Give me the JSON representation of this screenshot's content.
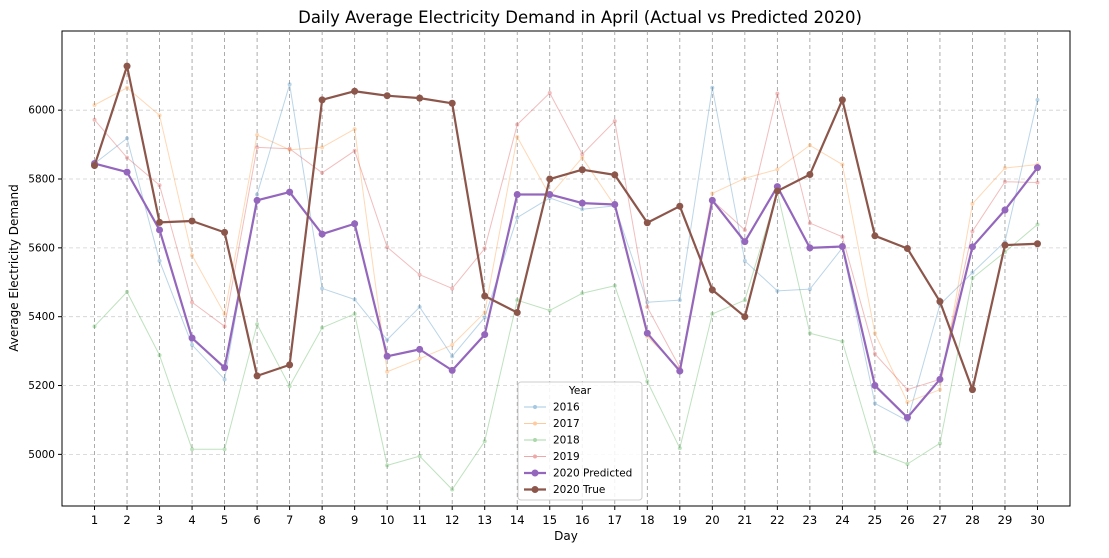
{
  "chart_data": {
    "type": "line",
    "title": "Daily Average Electricity Demand in April (Actual vs Predicted 2020)",
    "xlabel": "Day",
    "ylabel": "Average Electricity Demand",
    "x": [
      1,
      2,
      3,
      4,
      5,
      6,
      7,
      8,
      9,
      10,
      11,
      12,
      13,
      14,
      15,
      16,
      17,
      18,
      19,
      20,
      21,
      22,
      23,
      24,
      25,
      26,
      27,
      28,
      29,
      30
    ],
    "xlim": [
      0,
      31
    ],
    "ylim": [
      4850,
      6230
    ],
    "yticks": [
      5000,
      5200,
      5400,
      5600,
      5800,
      6000
    ],
    "grid": true,
    "legend": {
      "title": "Year",
      "position": "lower-center"
    },
    "series": [
      {
        "name": "2016",
        "color": "#1f77b4",
        "style": "faded",
        "values": [
          5845,
          5918,
          5562,
          5318,
          5218,
          5755,
          6075,
          5482,
          5450,
          5333,
          5428,
          5285,
          5398,
          5688,
          5745,
          5712,
          5722,
          5442,
          5448,
          6065,
          5562,
          5475,
          5480,
          5600,
          5148,
          5098,
          5435,
          5528,
          5618,
          6030
        ]
      },
      {
        "name": "2017",
        "color": "#ff7f0e",
        "style": "faded",
        "values": [
          6015,
          6065,
          5985,
          5578,
          5408,
          5928,
          5885,
          5892,
          5945,
          5240,
          5278,
          5318,
          5412,
          5922,
          5752,
          5862,
          5722,
          5342,
          5248,
          5758,
          5802,
          5828,
          5898,
          5842,
          5352,
          5152,
          5188,
          5728,
          5832,
          5842
        ]
      },
      {
        "name": "2018",
        "color": "#2ca02c",
        "style": "faded",
        "values": [
          5372,
          5472,
          5288,
          5015,
          5015,
          5378,
          5198,
          5368,
          5408,
          4968,
          4995,
          4898,
          5038,
          5448,
          5418,
          5468,
          5490,
          5212,
          5018,
          5408,
          5448,
          5762,
          5352,
          5328,
          5008,
          4972,
          5032,
          5512,
          5588,
          5668
        ]
      },
      {
        "name": "2019",
        "color": "#d62728",
        "style": "faded",
        "values": [
          5972,
          5862,
          5782,
          5442,
          5372,
          5892,
          5888,
          5818,
          5882,
          5602,
          5522,
          5482,
          5598,
          5958,
          6050,
          5872,
          5968,
          5428,
          5252,
          5738,
          5652,
          6048,
          5672,
          5632,
          5292,
          5188,
          5218,
          5648,
          5792,
          5790
        ]
      },
      {
        "name": "2020 Predicted",
        "color": "#9467bd",
        "style": "bold",
        "values": [
          5845,
          5820,
          5652,
          5338,
          5252,
          5738,
          5762,
          5640,
          5670,
          5285,
          5305,
          5244,
          5348,
          5755,
          5755,
          5730,
          5726,
          5352,
          5242,
          5738,
          5618,
          5778,
          5600,
          5604,
          5200,
          5107,
          5218,
          5603,
          5710,
          5833
        ]
      },
      {
        "name": "2020 True",
        "color": "#8c564b",
        "style": "bold",
        "values": [
          5839,
          6128,
          5674,
          5678,
          5645,
          5228,
          5260,
          6030,
          6055,
          6042,
          6035,
          6020,
          5460,
          5412,
          5800,
          5827,
          5812,
          5673,
          5721,
          5478,
          5400,
          5765,
          5813,
          6030,
          5635,
          5598,
          5444,
          5188,
          5608,
          5612
        ]
      }
    ]
  }
}
